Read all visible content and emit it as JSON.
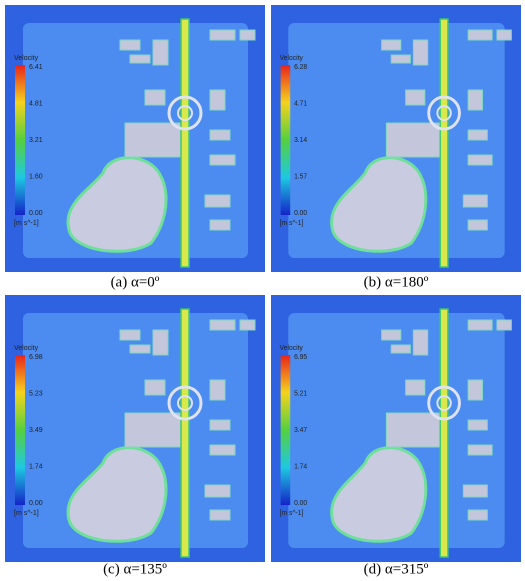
{
  "panels": [
    {
      "legend_title": "Velocity",
      "ticks": [
        "6.41",
        "4.81",
        "3.21",
        "1.60",
        "0.00"
      ],
      "unit": "[m s^-1]",
      "caption": "(a) α=0º"
    },
    {
      "legend_title": "Velocity",
      "ticks": [
        "6.28",
        "4.71",
        "3.14",
        "1.57",
        "0.00"
      ],
      "unit": "[m s^-1]",
      "caption": "(b) α=180º"
    },
    {
      "legend_title": "Velocity",
      "ticks": [
        "6.98",
        "5.23",
        "3.49",
        "1.74",
        "0.00"
      ],
      "unit": "[m s^-1]",
      "caption": "(c) α=135º"
    },
    {
      "legend_title": "Velocity",
      "ticks": [
        "6.95",
        "5.21",
        "3.47",
        "1.74",
        "0.00"
      ],
      "unit": "[m s^-1]",
      "caption": "(d) α=315º"
    }
  ]
}
